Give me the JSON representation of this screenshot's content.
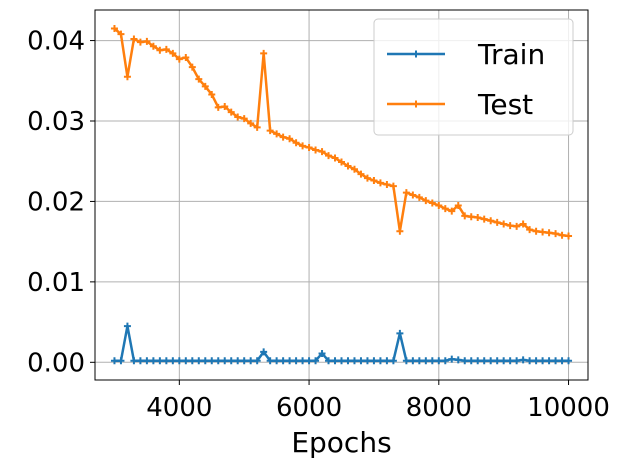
{
  "chart_data": {
    "type": "line",
    "title": "",
    "xlabel": "Epochs",
    "ylabel": "",
    "xlim": [
      2700,
      10300
    ],
    "ylim": [
      -0.0022,
      0.0438
    ],
    "xticks": [
      4000,
      6000,
      8000,
      10000
    ],
    "xtick_labels": [
      "4000",
      "6000",
      "8000",
      "10000"
    ],
    "yticks": [
      0.0,
      0.01,
      0.02,
      0.03,
      0.04
    ],
    "ytick_labels": [
      "0.00",
      "0.01",
      "0.02",
      "0.03",
      "0.04"
    ],
    "grid": true,
    "legend_position": "top-right",
    "x": [
      3000,
      3100,
      3200,
      3300,
      3400,
      3500,
      3600,
      3700,
      3800,
      3900,
      4000,
      4100,
      4200,
      4300,
      4400,
      4500,
      4600,
      4700,
      4800,
      4900,
      5000,
      5100,
      5200,
      5300,
      5400,
      5500,
      5600,
      5700,
      5800,
      5900,
      6000,
      6100,
      6200,
      6300,
      6400,
      6500,
      6600,
      6700,
      6800,
      6900,
      7000,
      7100,
      7200,
      7300,
      7400,
      7500,
      7600,
      7700,
      7800,
      7900,
      8000,
      8100,
      8200,
      8300,
      8400,
      8500,
      8600,
      8700,
      8800,
      8900,
      9000,
      9100,
      9200,
      9300,
      9400,
      9500,
      9600,
      9700,
      9800,
      9900,
      10000
    ],
    "series": [
      {
        "name": "Train",
        "color": "#1f77b4",
        "values": [
          0.0002,
          0.0002,
          0.0045,
          0.0002,
          0.0002,
          0.0002,
          0.0002,
          0.0002,
          0.0002,
          0.0002,
          0.0002,
          0.0002,
          0.0002,
          0.0002,
          0.0002,
          0.0002,
          0.0002,
          0.0002,
          0.0002,
          0.0002,
          0.0002,
          0.0002,
          0.0002,
          0.0013,
          0.0002,
          0.0002,
          0.0002,
          0.0002,
          0.0002,
          0.0002,
          0.0002,
          0.0002,
          0.0011,
          0.0002,
          0.0002,
          0.0002,
          0.0002,
          0.0002,
          0.0002,
          0.0002,
          0.0002,
          0.0002,
          0.0002,
          0.0002,
          0.0036,
          0.0002,
          0.0002,
          0.0002,
          0.0002,
          0.0002,
          0.0002,
          0.0002,
          0.0004,
          0.0003,
          0.0002,
          0.0002,
          0.0002,
          0.0002,
          0.0002,
          0.0002,
          0.0002,
          0.0002,
          0.0002,
          0.0003,
          0.0002,
          0.0002,
          0.0002,
          0.0002,
          0.0002,
          0.0002,
          0.0002
        ]
      },
      {
        "name": "Test",
        "color": "#ff7f0e",
        "values": [
          0.0415,
          0.0408,
          0.0355,
          0.0402,
          0.0398,
          0.0399,
          0.0393,
          0.0388,
          0.0389,
          0.0384,
          0.0377,
          0.0379,
          0.0367,
          0.0352,
          0.0343,
          0.0333,
          0.0317,
          0.0318,
          0.0311,
          0.0305,
          0.0303,
          0.0297,
          0.0292,
          0.0384,
          0.0288,
          0.0284,
          0.028,
          0.0278,
          0.0273,
          0.0269,
          0.0267,
          0.0264,
          0.0262,
          0.0257,
          0.0254,
          0.0249,
          0.0244,
          0.024,
          0.0234,
          0.0229,
          0.0226,
          0.0223,
          0.0221,
          0.0219,
          0.0163,
          0.0211,
          0.0208,
          0.0205,
          0.0201,
          0.0198,
          0.0195,
          0.0191,
          0.0188,
          0.0195,
          0.0182,
          0.0181,
          0.018,
          0.0178,
          0.0176,
          0.0174,
          0.0172,
          0.017,
          0.0169,
          0.0172,
          0.0165,
          0.0163,
          0.0162,
          0.0161,
          0.016,
          0.0158,
          0.0157
        ]
      }
    ]
  }
}
